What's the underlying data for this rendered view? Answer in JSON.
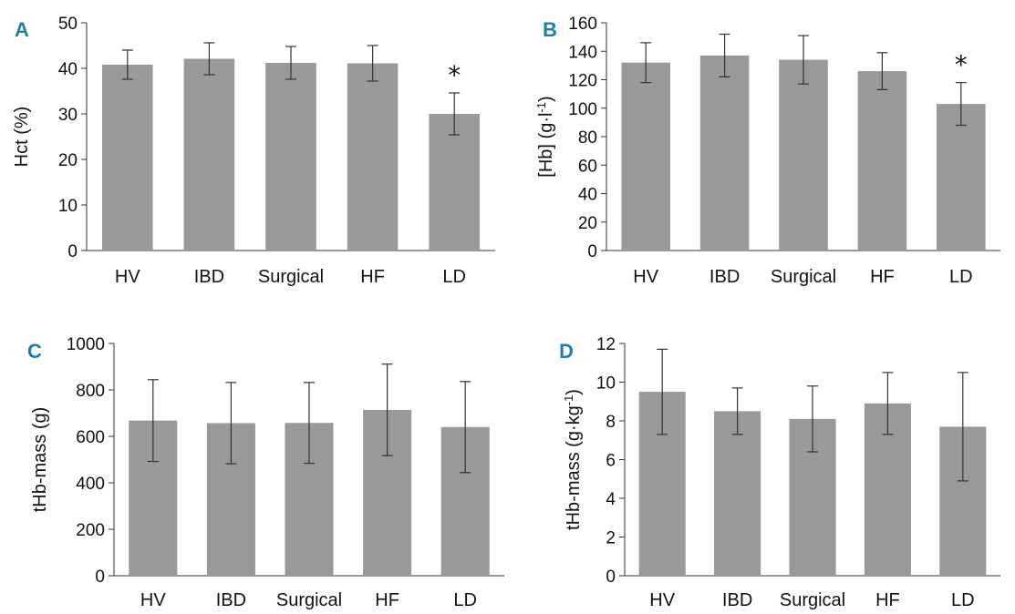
{
  "bar_color": "#999999",
  "chart_data": [
    {
      "panel_label": "A",
      "type": "bar",
      "categories": [
        "HV",
        "IBD",
        "Surgical",
        "HF",
        "LD"
      ],
      "values": [
        40.8,
        42.1,
        41.2,
        41.1,
        30.0
      ],
      "errors": [
        3.2,
        3.5,
        3.6,
        3.9,
        4.6
      ],
      "annotations": [
        {
          "category": "LD",
          "text": "*"
        }
      ],
      "ylabel": "Hct (%)",
      "ylim": [
        0,
        50
      ],
      "yticks": [
        "0",
        "10",
        "20",
        "30",
        "40",
        "50"
      ]
    },
    {
      "panel_label": "B",
      "type": "bar",
      "categories": [
        "HV",
        "IBD",
        "Surgical",
        "HF",
        "LD"
      ],
      "values": [
        132,
        137,
        134,
        126,
        103
      ],
      "errors": [
        14,
        15,
        17,
        13,
        15
      ],
      "annotations": [
        {
          "category": "LD",
          "text": "*"
        }
      ],
      "ylabel": "[Hb] (g·l",
      "ylabel_sup": "-1",
      "ylabel_end": ")",
      "ylim": [
        0,
        160
      ],
      "yticks": [
        "0",
        "20",
        "40",
        "60",
        "80",
        "100",
        "120",
        "140",
        "160"
      ]
    },
    {
      "panel_label": "C",
      "type": "bar",
      "categories": [
        "HV",
        "IBD",
        "Surgical",
        "HF",
        "LD"
      ],
      "values": [
        668,
        657,
        658,
        714,
        640
      ],
      "errors": [
        176,
        175,
        174,
        197,
        196
      ],
      "annotations": [],
      "ylabel": "tHb-mass (g)",
      "ylim": [
        0,
        1000
      ],
      "yticks": [
        "0",
        "200",
        "400",
        "600",
        "800",
        "1000"
      ]
    },
    {
      "panel_label": "D",
      "type": "bar",
      "categories": [
        "HV",
        "IBD",
        "Surgical",
        "HF",
        "LD"
      ],
      "values": [
        9.5,
        8.5,
        8.1,
        8.9,
        7.7
      ],
      "errors": [
        2.2,
        1.2,
        1.7,
        1.6,
        2.8
      ],
      "annotations": [],
      "ylabel": "tHb-mass (g·kg",
      "ylabel_sup": "-1",
      "ylabel_end": ")",
      "ylim": [
        0,
        12
      ],
      "yticks": [
        "0",
        "2",
        "4",
        "6",
        "8",
        "10",
        "12"
      ]
    }
  ]
}
